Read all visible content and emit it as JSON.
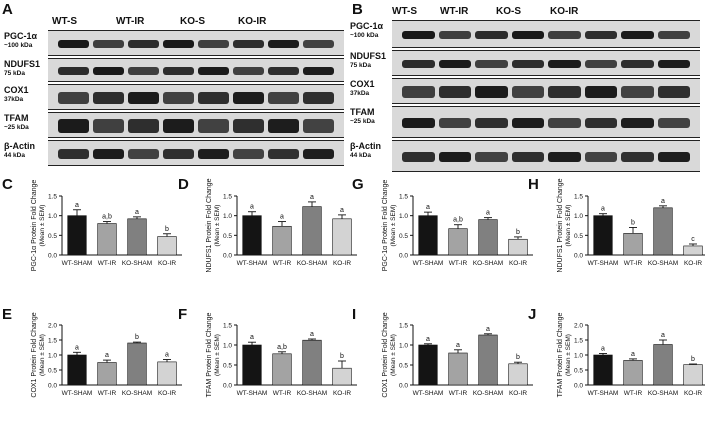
{
  "panel_letters": {
    "A": "A",
    "B": "B",
    "C": "C",
    "D": "D",
    "E": "E",
    "F": "F",
    "G": "G",
    "H": "H",
    "I": "I",
    "J": "J"
  },
  "blots": [
    {
      "id": "A",
      "groups": [
        "WT-S",
        "WT-IR",
        "KO-S",
        "KO-IR"
      ],
      "rows": [
        {
          "name": "PGC-1α",
          "size": "~100 kDa"
        },
        {
          "name": "NDUFS1",
          "size": "75 kDa"
        },
        {
          "name": "COX1",
          "size": "37kDa"
        },
        {
          "name": "TFAM",
          "size": "~25 kDa"
        },
        {
          "name": "β-Actin",
          "size": "44 kDa"
        }
      ]
    },
    {
      "id": "B",
      "groups": [
        "WT-S",
        "WT-IR",
        "KO-S",
        "KO-IR"
      ],
      "rows": [
        {
          "name": "PGC-1α",
          "size": "~100 kDa"
        },
        {
          "name": "NDUFS1",
          "size": "75 kDa"
        },
        {
          "name": "COX1",
          "size": "37kDa"
        },
        {
          "name": "TFAM",
          "size": "~25 kDa"
        },
        {
          "name": "β-Actin",
          "size": "44 kDa"
        }
      ]
    }
  ],
  "chart_data": [
    {
      "panel": "C",
      "type": "bar",
      "categories": [
        "WT-SHAM",
        "WT-IR",
        "KO-SHAM",
        "KO-IR"
      ],
      "values": [
        1.0,
        0.8,
        0.92,
        0.47
      ],
      "errors": [
        0.15,
        0.05,
        0.05,
        0.07
      ],
      "letters": [
        "a",
        "a,b",
        "a",
        "b"
      ],
      "ylabel": "PGC-1α Protein Fold Change",
      "ylabel2": "(Mean ± SEM)",
      "ylim": [
        0,
        1.5
      ],
      "yticks": [
        "0.0",
        "0.5",
        "1.0",
        "1.5"
      ],
      "colors": [
        "#141414",
        "#a3a3a3",
        "#808080",
        "#d3d3d3"
      ]
    },
    {
      "panel": "D",
      "type": "bar",
      "categories": [
        "WT-SHAM",
        "WT-IR",
        "KO-SHAM",
        "KO-IR"
      ],
      "values": [
        1.0,
        0.73,
        1.23,
        0.92
      ],
      "errors": [
        0.1,
        0.12,
        0.12,
        0.1
      ],
      "letters": [
        "a",
        "a",
        "a",
        "a"
      ],
      "ylabel": "NDUFS1 Protein Fold Change",
      "ylabel2": "(Mean ± SEM)",
      "ylim": [
        0,
        1.5
      ],
      "yticks": [
        "0.0",
        "0.5",
        "1.0",
        "1.5"
      ],
      "colors": [
        "#141414",
        "#a3a3a3",
        "#808080",
        "#d3d3d3"
      ]
    },
    {
      "panel": "G",
      "type": "bar",
      "categories": [
        "WT-SHAM",
        "WT-IR",
        "KO-SHAM",
        "KO-IR"
      ],
      "values": [
        1.0,
        0.67,
        0.9,
        0.4
      ],
      "errors": [
        0.09,
        0.1,
        0.05,
        0.06
      ],
      "letters": [
        "a",
        "a,b",
        "a",
        "b"
      ],
      "ylabel": "PGC-1α Protein Fold Change",
      "ylabel2": "(Mean ± SEM)",
      "ylim": [
        0,
        1.5
      ],
      "yticks": [
        "0.0",
        "0.5",
        "1.0",
        "1.5"
      ],
      "colors": [
        "#141414",
        "#a3a3a3",
        "#808080",
        "#d3d3d3"
      ]
    },
    {
      "panel": "H",
      "type": "bar",
      "categories": [
        "WT-SHAM",
        "WT-IR",
        "KO-SHAM",
        "KO-IR"
      ],
      "values": [
        1.0,
        0.55,
        1.2,
        0.23
      ],
      "errors": [
        0.05,
        0.15,
        0.05,
        0.05
      ],
      "letters": [
        "a",
        "b",
        "a",
        "c"
      ],
      "ylabel": "NDUFS1 Protein Fold Change",
      "ylabel2": "(Mean ± SEM)",
      "ylim": [
        0,
        1.5
      ],
      "yticks": [
        "0.0",
        "0.5",
        "1.0",
        "1.5"
      ],
      "colors": [
        "#141414",
        "#a3a3a3",
        "#808080",
        "#d3d3d3"
      ]
    },
    {
      "panel": "E",
      "type": "bar",
      "categories": [
        "WT-SHAM",
        "WT-IR",
        "KO-SHAM",
        "KO-IR"
      ],
      "values": [
        1.0,
        0.75,
        1.4,
        0.77
      ],
      "errors": [
        0.09,
        0.08,
        0.03,
        0.08
      ],
      "letters": [
        "a",
        "a",
        "b",
        "a"
      ],
      "ylabel": "COX1 Protein Fold Change",
      "ylabel2": "(Mean ± SEM)",
      "ylim": [
        0,
        2.0
      ],
      "yticks": [
        "0.0",
        "0.5",
        "1.0",
        "1.5",
        "2.0"
      ],
      "colors": [
        "#141414",
        "#a3a3a3",
        "#808080",
        "#d3d3d3"
      ]
    },
    {
      "panel": "F",
      "type": "bar",
      "categories": [
        "WT-SHAM",
        "WT-IR",
        "KO-SHAM",
        "KO-IR"
      ],
      "values": [
        1.0,
        0.78,
        1.12,
        0.42
      ],
      "errors": [
        0.07,
        0.05,
        0.03,
        0.18
      ],
      "letters": [
        "a",
        "a,b",
        "a",
        "b"
      ],
      "ylabel": "TFAM Protein Fold Change",
      "ylabel2": "(Mean ± SEM)",
      "ylim": [
        0,
        1.5
      ],
      "yticks": [
        "0.0",
        "0.5",
        "1.0",
        "1.5"
      ],
      "colors": [
        "#141414",
        "#a3a3a3",
        "#808080",
        "#d3d3d3"
      ]
    },
    {
      "panel": "I",
      "type": "bar",
      "categories": [
        "WT-SHAM",
        "WT-IR",
        "KO-SHAM",
        "KO-IR"
      ],
      "values": [
        1.0,
        0.8,
        1.25,
        0.53
      ],
      "errors": [
        0.03,
        0.08,
        0.03,
        0.04
      ],
      "letters": [
        "a",
        "a",
        "a",
        "b"
      ],
      "ylabel": "COX1 Protein Fold Change",
      "ylabel2": "(Mean ± SEM)",
      "ylim": [
        0,
        1.5
      ],
      "yticks": [
        "0.0",
        "0.5",
        "1.0",
        "1.5"
      ],
      "colors": [
        "#141414",
        "#a3a3a3",
        "#808080",
        "#d3d3d3"
      ]
    },
    {
      "panel": "J",
      "type": "bar",
      "categories": [
        "WT-SHAM",
        "WT-IR",
        "KO-SHAM",
        "KO-IR"
      ],
      "values": [
        1.0,
        0.82,
        1.35,
        0.68
      ],
      "errors": [
        0.05,
        0.05,
        0.15,
        0.02
      ],
      "letters": [
        "a",
        "a",
        "a",
        "b"
      ],
      "ylabel": "TFAM Protein Fold Change",
      "ylabel2": "(Mean ± SEM)",
      "ylim": [
        0,
        2.0
      ],
      "yticks": [
        "0.0",
        "0.5",
        "1.0",
        "1.5",
        "2.0"
      ],
      "colors": [
        "#141414",
        "#a3a3a3",
        "#808080",
        "#d3d3d3"
      ]
    }
  ]
}
